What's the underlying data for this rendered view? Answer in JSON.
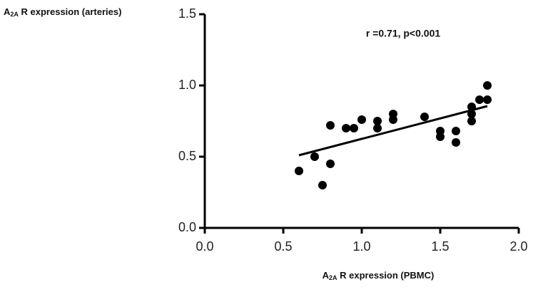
{
  "chart_data": {
    "type": "scatter",
    "y_label": {
      "base": "A",
      "sub": "2A",
      "rest": " R expression (arteries)"
    },
    "x_label": {
      "base": "A",
      "sub": "2A",
      "rest": " R expression (PBMC)"
    },
    "annotation": "r =0.71, p<0.001",
    "xlim": [
      0,
      2.0
    ],
    "ylim": [
      0,
      1.5
    ],
    "xticks": [
      {
        "value": 0,
        "label": "0.0"
      },
      {
        "value": 0.5,
        "label": "0.5"
      },
      {
        "value": 1,
        "label": "1.0"
      },
      {
        "value": 1.5,
        "label": "1.5"
      },
      {
        "value": 2,
        "label": "2.0"
      }
    ],
    "yticks": [
      {
        "value": 0,
        "label": "0.0"
      },
      {
        "value": 0.5,
        "label": "0.5"
      },
      {
        "value": 1,
        "label": "1.0"
      },
      {
        "value": 1.5,
        "label": "1.5"
      }
    ],
    "color": "#000000",
    "x": [
      0.6,
      0.7,
      0.75,
      0.8,
      0.8,
      0.9,
      0.95,
      1.0,
      1.1,
      1.1,
      1.2,
      1.2,
      1.4,
      1.5,
      1.5,
      1.6,
      1.6,
      1.7,
      1.7,
      1.7,
      1.75,
      1.8,
      1.8
    ],
    "values": [
      0.4,
      0.5,
      0.3,
      0.45,
      0.72,
      0.7,
      0.7,
      0.76,
      0.75,
      0.7,
      0.8,
      0.76,
      0.78,
      0.68,
      0.64,
      0.68,
      0.6,
      0.85,
      0.8,
      0.75,
      0.9,
      0.9,
      1.0
    ],
    "fit": {
      "x": [
        0.6,
        1.8
      ],
      "values": [
        0.51,
        0.855
      ]
    }
  }
}
